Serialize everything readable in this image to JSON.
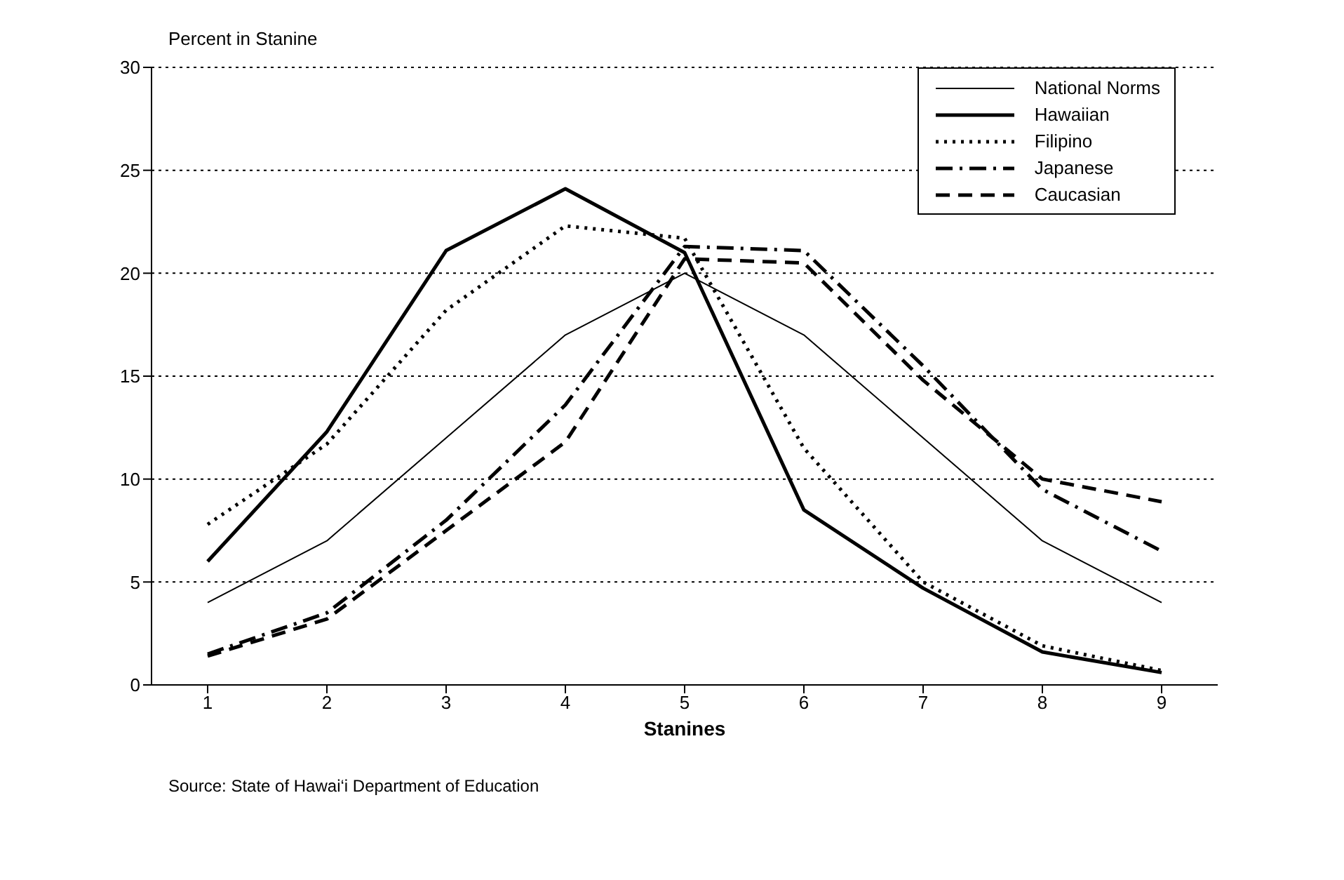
{
  "chart_data": {
    "type": "line",
    "ylabel": "Percent in Stanine",
    "xlabel": "Stanines",
    "categories": [
      "1",
      "2",
      "3",
      "4",
      "5",
      "6",
      "7",
      "8",
      "9"
    ],
    "ylim": [
      0,
      30
    ],
    "yticks": [
      0,
      5,
      10,
      15,
      20,
      25,
      30
    ],
    "grid": "y",
    "legend": "top right",
    "marker": "none",
    "annotations": [
      "Source: State of Hawai‘i Department of Education"
    ],
    "series": [
      {
        "name": "National Norms",
        "color": "#000000",
        "line_style": "solid",
        "values": [
          4,
          7,
          12,
          17,
          20,
          17,
          12,
          7,
          4
        ]
      },
      {
        "name": "Hawaiian",
        "color": "#000000",
        "line_style": "solid",
        "values": [
          6,
          12.3,
          21.1,
          24.1,
          21,
          8.5,
          4.7,
          1.6,
          0.6
        ]
      },
      {
        "name": "Filipino",
        "color": "#000000",
        "line_style": "dotted",
        "values": [
          7.8,
          11.7,
          18.2,
          22.3,
          21.7,
          11.5,
          5,
          1.9,
          0.7
        ]
      },
      {
        "name": "Japanese",
        "color": "#000000",
        "line_style": "dashdot",
        "values": [
          1.5,
          3.5,
          8,
          13.6,
          21.3,
          21.1,
          15.5,
          9.5,
          6.5
        ]
      },
      {
        "name": "Caucasian",
        "color": "#000000",
        "line_style": "dashed",
        "values": [
          1.4,
          3.2,
          7.5,
          11.8,
          20.7,
          20.5,
          14.8,
          10,
          8.9
        ]
      }
    ]
  }
}
